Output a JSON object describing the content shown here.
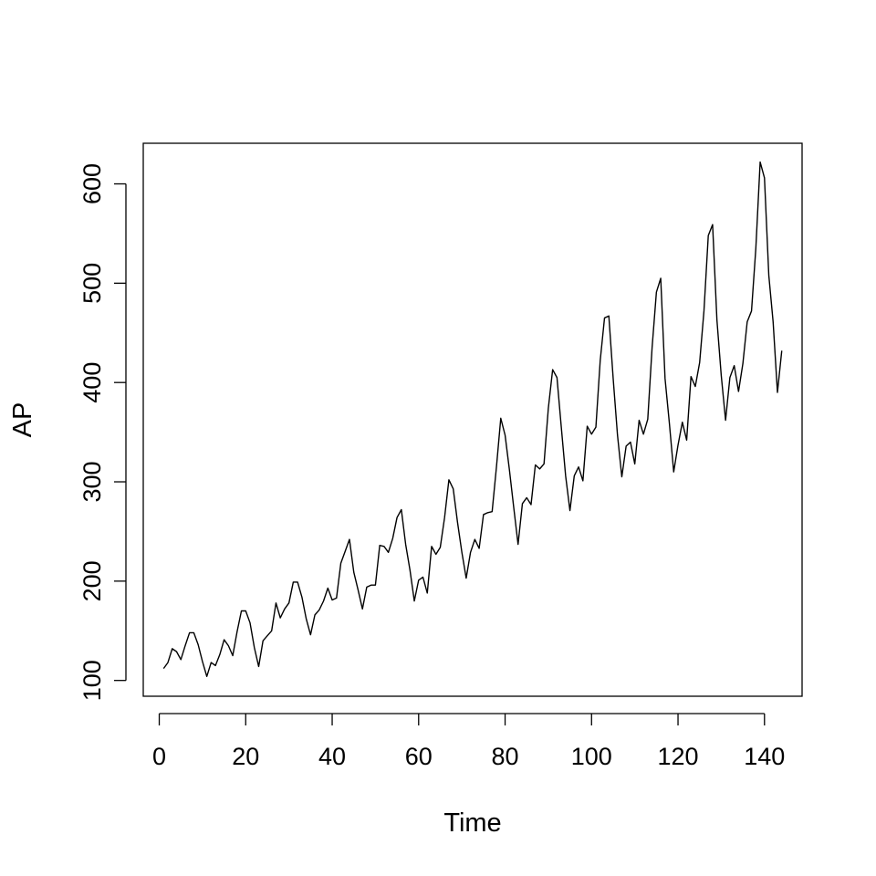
{
  "chart_data": {
    "type": "line",
    "title": "",
    "xlabel": "Time",
    "ylabel": "AP",
    "xlim": [
      -3.7,
      148.7
    ],
    "ylim": [
      84.1,
      640.9
    ],
    "x_ticks": [
      0,
      20,
      40,
      60,
      80,
      100,
      120,
      140
    ],
    "y_ticks": [
      100,
      200,
      300,
      400,
      500,
      600
    ],
    "grid": false,
    "legend": "none",
    "line_color": "#000000",
    "series": [
      {
        "x_start": 1,
        "values": [
          112,
          118,
          132,
          129,
          121,
          135,
          148,
          148,
          136,
          119,
          104,
          118,
          115,
          126,
          141,
          135,
          125,
          149,
          170,
          170,
          158,
          133,
          114,
          140,
          145,
          150,
          178,
          163,
          172,
          178,
          199,
          199,
          184,
          162,
          146,
          166,
          171,
          180,
          193,
          181,
          183,
          218,
          230,
          242,
          209,
          191,
          172,
          194,
          196,
          196,
          236,
          235,
          229,
          243,
          264,
          272,
          237,
          211,
          180,
          201,
          204,
          188,
          235,
          227,
          234,
          264,
          302,
          293,
          259,
          229,
          203,
          229,
          242,
          233,
          267,
          269,
          270,
          315,
          364,
          347,
          312,
          274,
          237,
          278,
          284,
          277,
          317,
          313,
          318,
          374,
          413,
          405,
          355,
          306,
          271,
          306,
          315,
          301,
          356,
          348,
          355,
          422,
          465,
          467,
          404,
          347,
          305,
          336,
          340,
          318,
          362,
          348,
          363,
          435,
          491,
          505,
          404,
          359,
          310,
          337,
          360,
          342,
          406,
          396,
          420,
          472,
          548,
          559,
          463,
          407,
          362,
          405,
          417,
          391,
          419,
          461,
          472,
          535,
          622,
          606,
          508,
          461,
          390,
          432
        ]
      }
    ]
  }
}
